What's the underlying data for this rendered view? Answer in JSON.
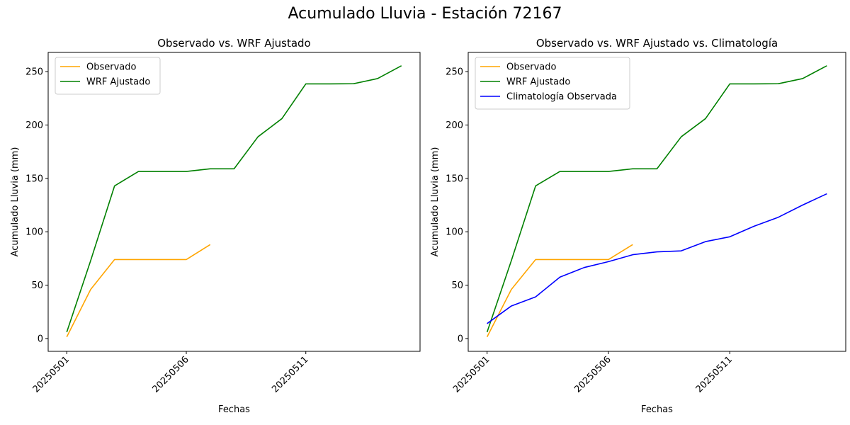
{
  "figure": {
    "suptitle": "Acumulado Lluvia - Estación 72167"
  },
  "chart_data": [
    {
      "type": "line",
      "title": "Observado vs. WRF Ajustado",
      "xlabel": "Fechas",
      "ylabel": "Acumulado Lluvia (mm)",
      "x": [
        "20250501",
        "20250502",
        "20250503",
        "20250504",
        "20250505",
        "20250506",
        "20250507",
        "20250508",
        "20250509",
        "20250510",
        "20250511",
        "20250512",
        "20250513",
        "20250514",
        "20250515"
      ],
      "xticks": [
        "20250501",
        "20250506",
        "20250511"
      ],
      "yticks": [
        0,
        50,
        100,
        150,
        200,
        250
      ],
      "ylim": [
        -12,
        268
      ],
      "legend": "top-left",
      "grid": false,
      "series": [
        {
          "name": "Observado",
          "color": "#FFA500",
          "values": [
            1.5,
            46,
            74,
            74,
            74,
            74,
            88,
            null,
            null,
            null,
            null,
            null,
            null,
            null,
            null
          ]
        },
        {
          "name": "WRF Ajustado",
          "color": "#008000",
          "values": [
            6,
            73,
            143,
            156.5,
            156.5,
            156.5,
            159,
            159,
            189,
            206,
            238.5,
            238.5,
            238.7,
            243.5,
            255.5
          ]
        }
      ]
    },
    {
      "type": "line",
      "title": "Observado vs. WRF Ajustado vs. Climatología",
      "xlabel": "Fechas",
      "ylabel": "Acumulado Lluvia (mm)",
      "x": [
        "20250501",
        "20250502",
        "20250503",
        "20250504",
        "20250505",
        "20250506",
        "20250507",
        "20250508",
        "20250509",
        "20250510",
        "20250511",
        "20250512",
        "20250513",
        "20250514",
        "20250515"
      ],
      "xticks": [
        "20250501",
        "20250506",
        "20250511"
      ],
      "yticks": [
        0,
        50,
        100,
        150,
        200,
        250
      ],
      "ylim": [
        -12,
        268
      ],
      "legend": "top-left",
      "grid": false,
      "series": [
        {
          "name": "Observado",
          "color": "#FFA500",
          "values": [
            1.5,
            46,
            74,
            74,
            74,
            74,
            88,
            null,
            null,
            null,
            null,
            null,
            null,
            null,
            null
          ]
        },
        {
          "name": "WRF Ajustado",
          "color": "#008000",
          "values": [
            6,
            73,
            143,
            156.5,
            156.5,
            156.5,
            159,
            159,
            189,
            206,
            238.5,
            238.5,
            238.7,
            243.5,
            255.5
          ]
        },
        {
          "name": "Climatología Observada",
          "color": "#0000FF",
          "values": [
            14,
            30.5,
            39,
            57.5,
            66.5,
            72,
            78.5,
            81.2,
            82.1,
            90.8,
            95.3,
            105.2,
            113.6,
            125,
            135.6
          ]
        }
      ]
    }
  ]
}
